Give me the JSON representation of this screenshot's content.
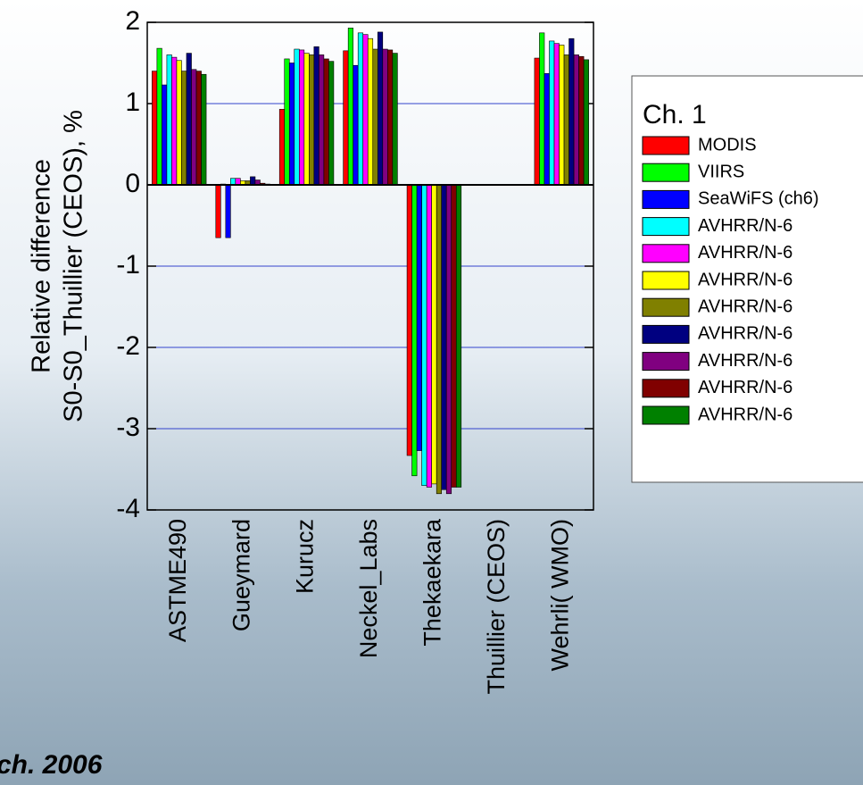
{
  "chart_data": {
    "type": "bar",
    "y_label": [
      "Relative difference",
      "S0-S0_Thuillier (CEOS), %"
    ],
    "legend_title": "Ch. 1",
    "annotation": "ch. 2006",
    "categories": [
      "ASTME490",
      "Gueymard",
      "Kurucz",
      "Neckel_Labs",
      "Thekaekara",
      "Thuillier (CEOS)",
      "Wehrli( WMO)"
    ],
    "series": [
      {
        "name": "MODIS",
        "color": "#ff0000",
        "values": [
          1.4,
          -0.65,
          0.93,
          1.65,
          -3.33,
          0,
          1.56
        ]
      },
      {
        "name": "VIIRS",
        "color": "#00ff00",
        "values": [
          1.68,
          0.01,
          1.55,
          1.93,
          -3.58,
          0,
          1.87
        ]
      },
      {
        "name": "SeaWiFS (ch6)",
        "color": "#0000ff",
        "values": [
          1.23,
          -0.65,
          1.5,
          1.47,
          -3.27,
          0,
          1.37
        ]
      },
      {
        "name": "AVHRR/N-6",
        "color": "#00ffff",
        "values": [
          1.6,
          0.08,
          1.67,
          1.87,
          -3.7,
          0,
          1.77
        ]
      },
      {
        "name": "AVHRR/N-6",
        "color": "#ff00ff",
        "values": [
          1.57,
          0.08,
          1.66,
          1.85,
          -3.72,
          0,
          1.74
        ]
      },
      {
        "name": "AVHRR/N-6",
        "color": "#ffff00",
        "values": [
          1.53,
          0.05,
          1.62,
          1.8,
          -3.68,
          0,
          1.72
        ]
      },
      {
        "name": "AVHRR/N-6",
        "color": "#808000",
        "values": [
          1.4,
          0.05,
          1.6,
          1.67,
          -3.8,
          0,
          1.6
        ]
      },
      {
        "name": "AVHRR/N-6",
        "color": "#000080",
        "values": [
          1.62,
          0.1,
          1.7,
          1.88,
          -3.75,
          0,
          1.8
        ]
      },
      {
        "name": "AVHRR/N-6",
        "color": "#800080",
        "values": [
          1.42,
          0.06,
          1.6,
          1.67,
          -3.8,
          0,
          1.6
        ]
      },
      {
        "name": "AVHRR/N-6",
        "color": "#800000",
        "values": [
          1.4,
          0.02,
          1.55,
          1.66,
          -3.72,
          0,
          1.58
        ]
      },
      {
        "name": "AVHRR/N-6",
        "color": "#008000",
        "values": [
          1.36,
          0.01,
          1.52,
          1.62,
          -3.72,
          0,
          1.54
        ]
      }
    ],
    "ylim": [
      -4,
      2
    ],
    "yticks": [
      -4,
      -3,
      -2,
      -1,
      0,
      1,
      2
    ],
    "grid": true,
    "grid_color": "#3344cc"
  }
}
